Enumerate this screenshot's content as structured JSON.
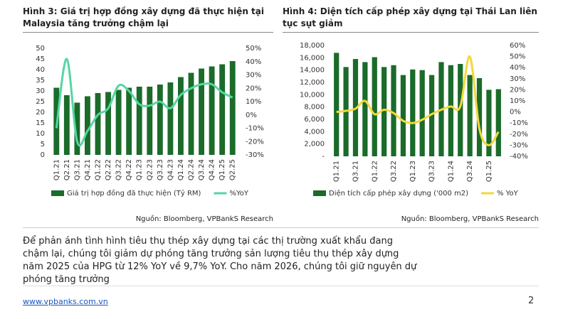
{
  "chart_data": [
    {
      "type": "bar",
      "title": "Hình 3: Giá trị hợp đồng xây dựng đã thực hiện tại Malaysia tăng trưởng chậm lại",
      "categories": [
        "Q1.21",
        "Q2.21",
        "Q3.21",
        "Q4.21",
        "Q1.22",
        "Q2.22",
        "Q3.22",
        "Q4.22",
        "Q1.23",
        "Q2.23",
        "Q3.23",
        "Q4.23",
        "Q1.24",
        "Q2.24",
        "Q3.24",
        "Q4.24",
        "Q1.25",
        "Q2.25"
      ],
      "series": [
        {
          "name": "Giá trị hợp đồng đã thực hiện (Tỷ RM)",
          "color": "#1b6b2a",
          "type": "bar",
          "values": [
            31.5,
            28,
            24.5,
            27.5,
            29,
            29.5,
            30.5,
            31.5,
            32,
            32,
            33,
            34,
            36.5,
            38.5,
            40.5,
            41.5,
            42.5,
            44
          ]
        },
        {
          "name": "%YoY",
          "color": "#55d6a3",
          "type": "line",
          "axis": "y2",
          "values": [
            -10,
            42,
            -20,
            -12,
            0,
            5,
            22,
            18,
            8,
            7,
            10,
            5,
            15,
            20,
            23,
            23,
            17,
            13
          ]
        }
      ],
      "ylim": [
        0,
        50
      ],
      "yticks": [
        0,
        5,
        10,
        15,
        20,
        25,
        30,
        35,
        40,
        45,
        50
      ],
      "y2lim": [
        -30,
        50
      ],
      "y2ticks": [
        {
          "value": -30,
          "label": "-30%"
        },
        {
          "value": -20,
          "label": "-20%"
        },
        {
          "value": -10,
          "label": "-10%"
        },
        {
          "value": 0,
          "label": "0%"
        },
        {
          "value": 10,
          "label": "10%"
        },
        {
          "value": 20,
          "label": "20%"
        },
        {
          "value": 30,
          "label": "30%"
        },
        {
          "value": 40,
          "label": "40%"
        },
        {
          "value": 50,
          "label": "50%"
        }
      ],
      "legend": "bottom",
      "source": "Nguồn: Bloomberg, VPBankS Research"
    },
    {
      "type": "bar",
      "title": "Hình 4: Diện tích cấp phép xây dựng tại Thái Lan liên tục sụt giảm",
      "categories": [
        "Q1.21",
        null,
        "Q3.21",
        null,
        "Q1.22",
        null,
        "Q3.22",
        null,
        "Q1.23",
        null,
        "Q3.23",
        null,
        "Q1.24",
        null,
        "Q3.24",
        null,
        "Q1.25",
        null
      ],
      "series": [
        {
          "name": "Diện tích cấp phép xây dựng ('000 m2)",
          "color": "#1b6b2a",
          "type": "bar",
          "values": [
            16800,
            14500,
            15800,
            15300,
            16100,
            14500,
            14800,
            13200,
            14100,
            14000,
            13200,
            15300,
            14800,
            15000,
            13200,
            12700,
            10800,
            10900
          ]
        },
        {
          "name": "% YoY",
          "color": "#f2d93c",
          "type": "line",
          "axis": "y2",
          "values": [
            0,
            1,
            3,
            10,
            -2,
            2,
            -1,
            -8,
            -10,
            -7,
            -2,
            2,
            5,
            5,
            50,
            -15,
            -30,
            -18
          ]
        }
      ],
      "ylim": [
        0,
        18000
      ],
      "yticks": [
        {
          "value": 0,
          "label": "-"
        },
        {
          "value": 2000,
          "label": "2,000"
        },
        {
          "value": 4000,
          "label": "4,000"
        },
        {
          "value": 6000,
          "label": "6,000"
        },
        {
          "value": 8000,
          "label": "8,000"
        },
        {
          "value": 10000,
          "label": "10,000"
        },
        {
          "value": 12000,
          "label": "12,000"
        },
        {
          "value": 14000,
          "label": "14,000"
        },
        {
          "value": 16000,
          "label": "16,000"
        },
        {
          "value": 18000,
          "label": "18,000"
        }
      ],
      "y2lim": [
        -40,
        60
      ],
      "y2ticks": [
        {
          "value": -40,
          "label": "-40%"
        },
        {
          "value": -30,
          "label": "-30%"
        },
        {
          "value": -20,
          "label": "-20%"
        },
        {
          "value": -10,
          "label": "-10%"
        },
        {
          "value": 0,
          "label": "0%"
        },
        {
          "value": 10,
          "label": "10%"
        },
        {
          "value": 20,
          "label": "20%"
        },
        {
          "value": 30,
          "label": "30%"
        },
        {
          "value": 40,
          "label": "40%"
        },
        {
          "value": 50,
          "label": "50%"
        },
        {
          "value": 60,
          "label": "60%"
        }
      ],
      "legend": "bottom",
      "source": "Nguồn: Bloomberg, VPBankS Research"
    }
  ],
  "paragraph": "Để phản ánh tình hình tiêu thụ thép xây dựng tại các thị trường xuất khẩu đang chậm lại, chúng tôi giảm dự phóng tăng trưởng sản lượng tiêu thụ thép xây dựng năm 2025 của HPG từ 12% YoY về 9,7% YoY. Cho năm 2026, chúng tôi giữ nguyên dự phóng tăng trưởng",
  "footer": {
    "url": "www.vpbanks.com.vn",
    "page": "2"
  }
}
